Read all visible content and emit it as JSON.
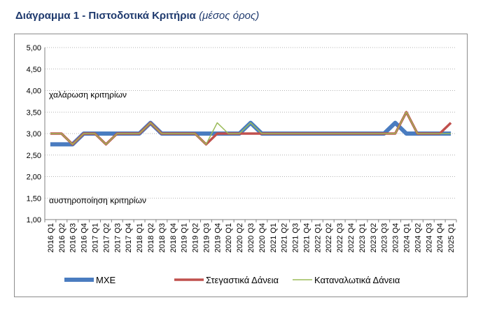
{
  "header": {
    "title": "Διάγραμμα 1 - Πιστοδοτικά Κριτήρια",
    "subtitle": "(μέσος όρος)"
  },
  "chart_data": {
    "type": "line",
    "ylim": [
      1.0,
      5.0
    ],
    "yticks": [
      "1,00",
      "1,50",
      "2,00",
      "2,50",
      "3,00",
      "3,50",
      "4,00",
      "4,50",
      "5,00"
    ],
    "grid": true,
    "legend_position": "bottom",
    "annotations": [
      {
        "text": "χαλάρωση κριτηρίων",
        "y": 3.9
      },
      {
        "text": "αυστηροποίηση κριτηρίων",
        "y": 1.45
      }
    ],
    "categories": [
      "2016 Q1",
      "2016 Q2",
      "2016 Q3",
      "2016 Q4",
      "2017 Q1",
      "2017 Q2",
      "2017 Q3",
      "2017 Q4",
      "2018 Q1",
      "2018 Q2",
      "2018 Q3",
      "2018 Q4",
      "2019 Q1",
      "2019 Q2",
      "2019 Q3",
      "2019 Q4",
      "2020 Q1",
      "2020 Q2",
      "2020 Q3",
      "2020 Q4",
      "2021 Q1",
      "2021 Q2",
      "2021 Q3",
      "2021 Q4",
      "2022 Q1",
      "2022 Q2",
      "2022 Q3",
      "2022 Q4",
      "2023 Q1",
      "2023 Q2",
      "2023 Q3",
      "2023 Q4",
      "2024 Q1",
      "2024 Q2",
      "2024 Q3",
      "2024 Q4",
      "2025 Q1"
    ],
    "series": [
      {
        "name": "ΜΧΕ",
        "color": "#4a7cc0",
        "width": 6,
        "values": [
          2.75,
          2.75,
          2.75,
          3.0,
          3.0,
          3.0,
          3.0,
          3.0,
          3.0,
          3.25,
          3.0,
          3.0,
          3.0,
          3.0,
          3.0,
          3.0,
          3.0,
          3.0,
          3.25,
          3.0,
          3.0,
          3.0,
          3.0,
          3.0,
          3.0,
          3.0,
          3.0,
          3.0,
          3.0,
          3.0,
          3.0,
          3.25,
          3.0,
          3.0,
          3.0,
          3.0,
          3.0
        ]
      },
      {
        "name": "Στεγαστικά Δάνεια",
        "color": "#c0504d",
        "width": 3.5,
        "values": [
          3.0,
          3.0,
          2.75,
          3.0,
          3.0,
          2.75,
          3.0,
          3.0,
          3.0,
          3.25,
          3.0,
          3.0,
          3.0,
          3.0,
          2.75,
          3.0,
          3.0,
          3.0,
          3.0,
          3.0,
          3.0,
          3.0,
          3.0,
          3.0,
          3.0,
          3.0,
          3.0,
          3.0,
          3.0,
          3.0,
          3.0,
          3.0,
          3.5,
          3.0,
          3.0,
          3.0,
          3.25
        ]
      },
      {
        "name": "Καταναλωτικά Δάνεια",
        "color": "#9bbb59",
        "width": 1.5,
        "values": [
          3.0,
          3.0,
          2.75,
          3.0,
          3.0,
          2.75,
          3.0,
          3.0,
          3.0,
          3.25,
          3.0,
          3.0,
          3.0,
          3.0,
          2.75,
          3.25,
          3.0,
          3.0,
          3.25,
          3.0,
          3.0,
          3.0,
          3.0,
          3.0,
          3.0,
          3.0,
          3.0,
          3.0,
          3.0,
          3.0,
          3.0,
          3.0,
          3.5,
          3.0,
          3.0,
          3.0,
          3.0
        ]
      }
    ]
  }
}
